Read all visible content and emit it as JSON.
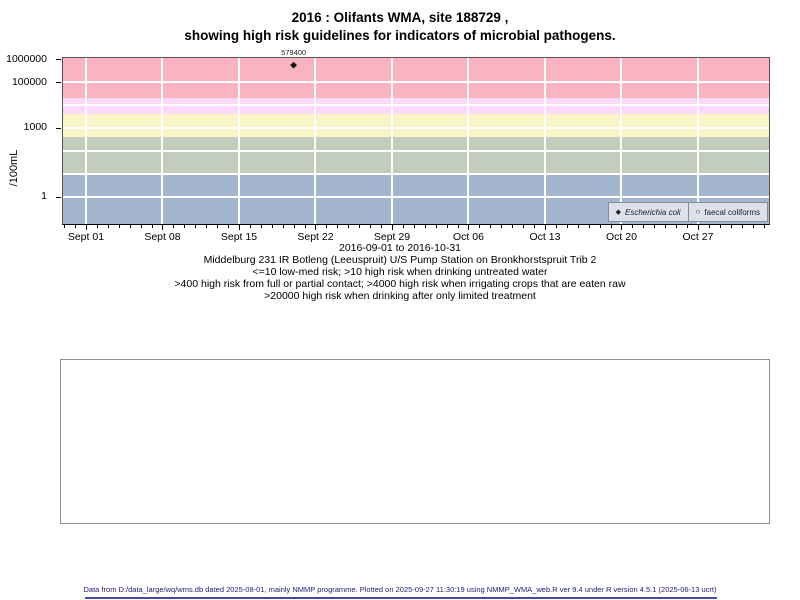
{
  "title": {
    "line1": "2016 : Olifants WMA, site 188729 ,",
    "line2": "showing high risk guidelines for indicators of microbial pathogens."
  },
  "chart_data": {
    "type": "scatter",
    "y_axis": {
      "label": "/100mL",
      "scale": "log10",
      "top_exp": 6.05,
      "bottom_exp": -1.2,
      "ticks": [
        {
          "label": "1000000",
          "value": 1000000
        },
        {
          "label": "100000",
          "value": 100000
        },
        {
          "label": "1000",
          "value": 1000
        },
        {
          "label": "1",
          "value": 1
        }
      ],
      "gridline_exps": [
        5,
        4,
        3,
        2,
        1,
        0
      ]
    },
    "x_axis": {
      "label": "2016-09-01 to 2016-10-31",
      "start_date": "2016-09-01",
      "end_date": "2016-10-31",
      "range_days": [
        -2.1,
        62.5
      ],
      "minor_tick_every_days": 1,
      "ticks": [
        {
          "label": "Sept 01",
          "day": 0
        },
        {
          "label": "Sept 08",
          "day": 7
        },
        {
          "label": "Sept 15",
          "day": 14
        },
        {
          "label": "Sept 22",
          "day": 21
        },
        {
          "label": "Sept 29",
          "day": 28
        },
        {
          "label": "Oct 06",
          "day": 35
        },
        {
          "label": "Oct 13",
          "day": 42
        },
        {
          "label": "Oct 20",
          "day": 49
        },
        {
          "label": "Oct 27",
          "day": 56
        }
      ]
    },
    "bands": [
      {
        "name": "high-risk-drinking-limited-treatment",
        "rule": ">20000",
        "min": 20000,
        "max": null,
        "color": "#fab3c0"
      },
      {
        "name": "high-risk-irrigating-raw-crops",
        "rule": ">4000",
        "min": 4000,
        "max": 20000,
        "color": "#fbd9f8"
      },
      {
        "name": "high-risk-full-partial-contact",
        "rule": ">400",
        "min": 400,
        "max": 4000,
        "color": "#f8f4c4"
      },
      {
        "name": "high-risk-drinking-untreated",
        "rule": ">10",
        "min": 10,
        "max": 400,
        "color": "#c3cdbd"
      },
      {
        "name": "low-med-risk",
        "rule": "<=10",
        "min": null,
        "max": 10,
        "color": "#a4b6ce"
      }
    ],
    "series": [
      {
        "name": "Escherichia coli",
        "marker": "filled-diamond",
        "points": [
          {
            "date": "2016-09-20",
            "day": 19,
            "value": 579400,
            "label": "579400"
          }
        ]
      },
      {
        "name": "faecal coliforms",
        "marker": "open-circle",
        "points": []
      }
    ],
    "grid": "white-major",
    "legend_position": "bottom-right-inside"
  },
  "legend": {
    "items": [
      {
        "label": "Escherichia coli",
        "symbol": "filled-diamond"
      },
      {
        "label": "faecal coliforms",
        "symbol": "open-circle"
      }
    ]
  },
  "captions": {
    "site": "Middelburg 231 IR Botleng (Leeuspruit) U/S Pump Station on Bronkhorstspruit Trib 2",
    "risk1": "<=10 low-med risk; >10 high risk when drinking untreated water",
    "risk2": ">400 high risk from full or partial contact; >4000 high risk when irrigating crops that are eaten raw",
    "risk3": ">20000 high risk when drinking after only limited treatment"
  },
  "footer": {
    "text": "Data from D:/data_large/wq/wms.db dated 2025-08-01, mainly NMMP programme. Plotted on 2025-09-27 11:30:19 using NMMP_WMA_web.R ver 9.4 under R version 4.5.1 (2025-06-13 ucrt)"
  },
  "colors": {
    "band_pink": "#fab3c0",
    "band_magenta": "#fbd9f8",
    "band_yellow": "#f8f4c4",
    "band_green": "#c3cdbd",
    "band_blue": "#a4b6ce",
    "legend_bg": "#dce2ec",
    "footer_text": "#20207a",
    "footer_line": "#4646ae",
    "point": "#111111"
  }
}
